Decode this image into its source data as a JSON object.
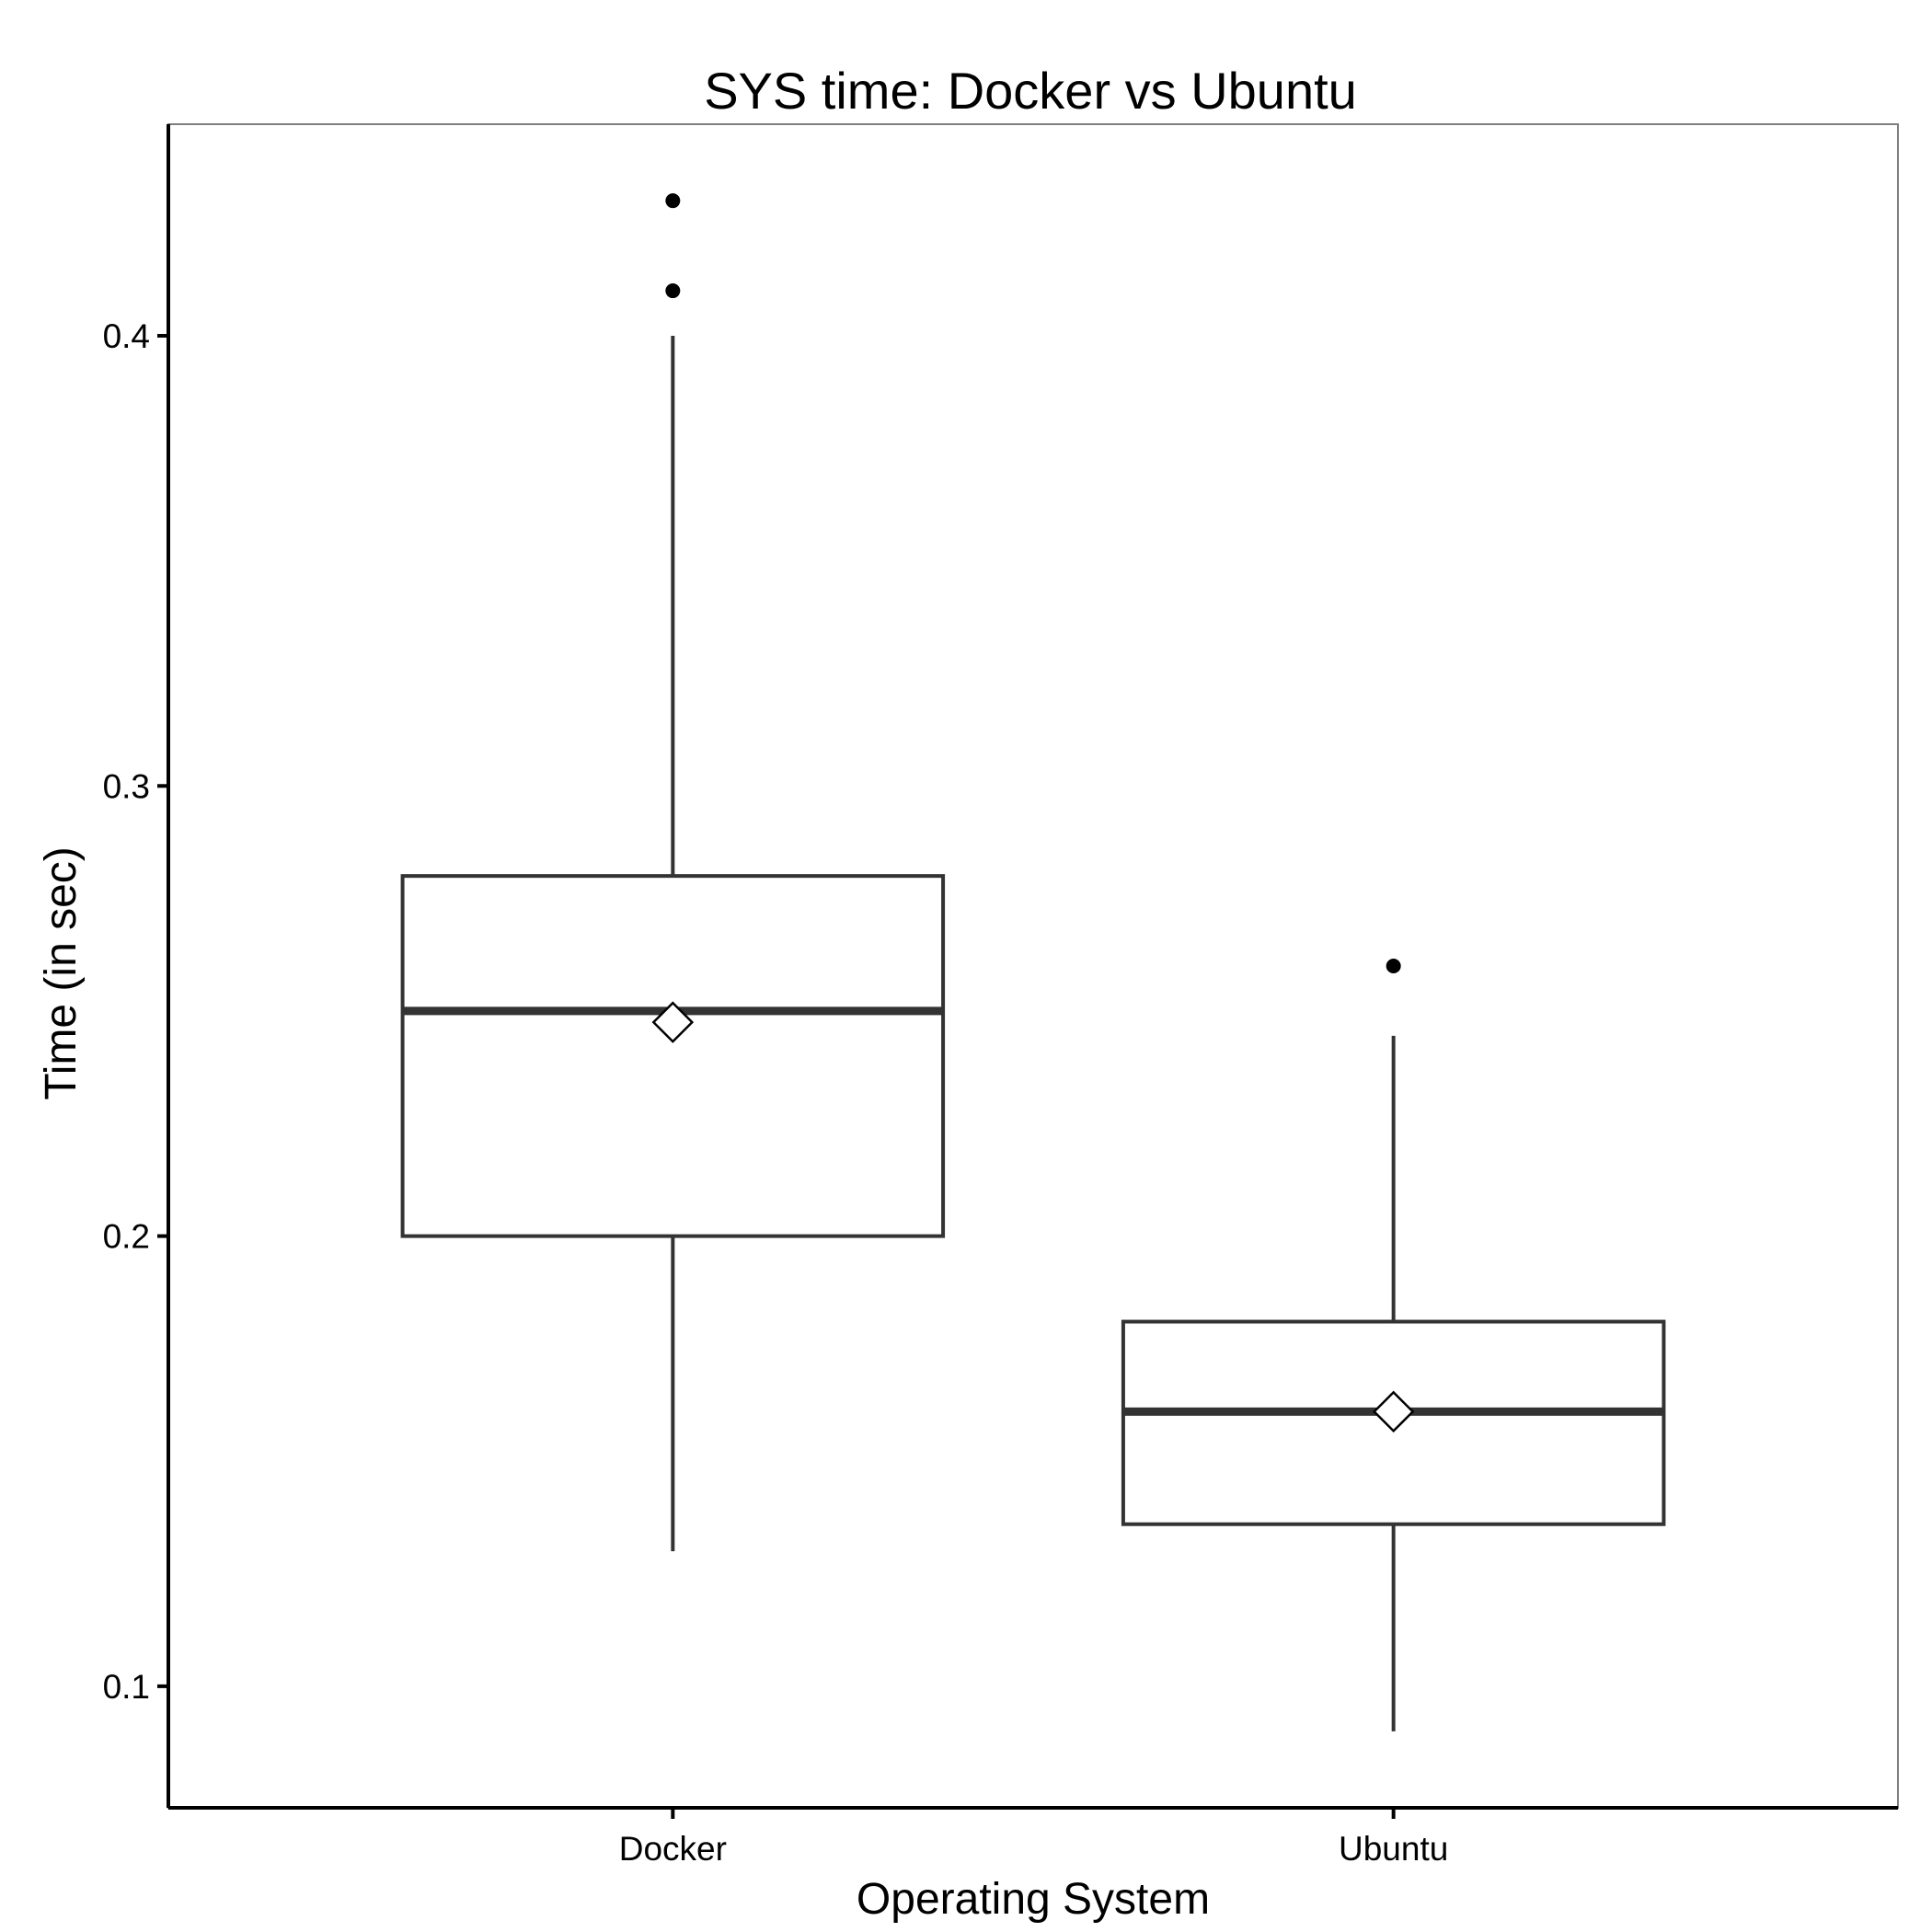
{
  "chart_data": {
    "type": "box",
    "title": "SYS time: Docker vs Ubuntu",
    "xlabel": "Operating System",
    "ylabel": "Time (in sec)",
    "categories": [
      "Docker",
      "Ubuntu"
    ],
    "ylim": [
      0.073,
      0.447
    ],
    "yticks": [
      0.1,
      0.2,
      0.3,
      0.4
    ],
    "ytick_labels": [
      "0.1",
      "0.2",
      "0.3",
      "0.4"
    ],
    "boxes": [
      {
        "name": "Docker",
        "min": 0.13,
        "q1": 0.2,
        "median": 0.25,
        "q3": 0.28,
        "max": 0.4,
        "mean": 0.2475,
        "outliers": [
          0.41,
          0.43
        ]
      },
      {
        "name": "Ubuntu",
        "min": 0.09,
        "q1": 0.136,
        "median": 0.161,
        "q3": 0.181,
        "max": 0.2445,
        "mean": 0.161,
        "outliers": [
          0.26
        ]
      }
    ],
    "grid": false,
    "legend": "none",
    "colors": {
      "box_stroke": "#333333",
      "panel_border": "#7f7f7f",
      "points": "#000000"
    }
  }
}
